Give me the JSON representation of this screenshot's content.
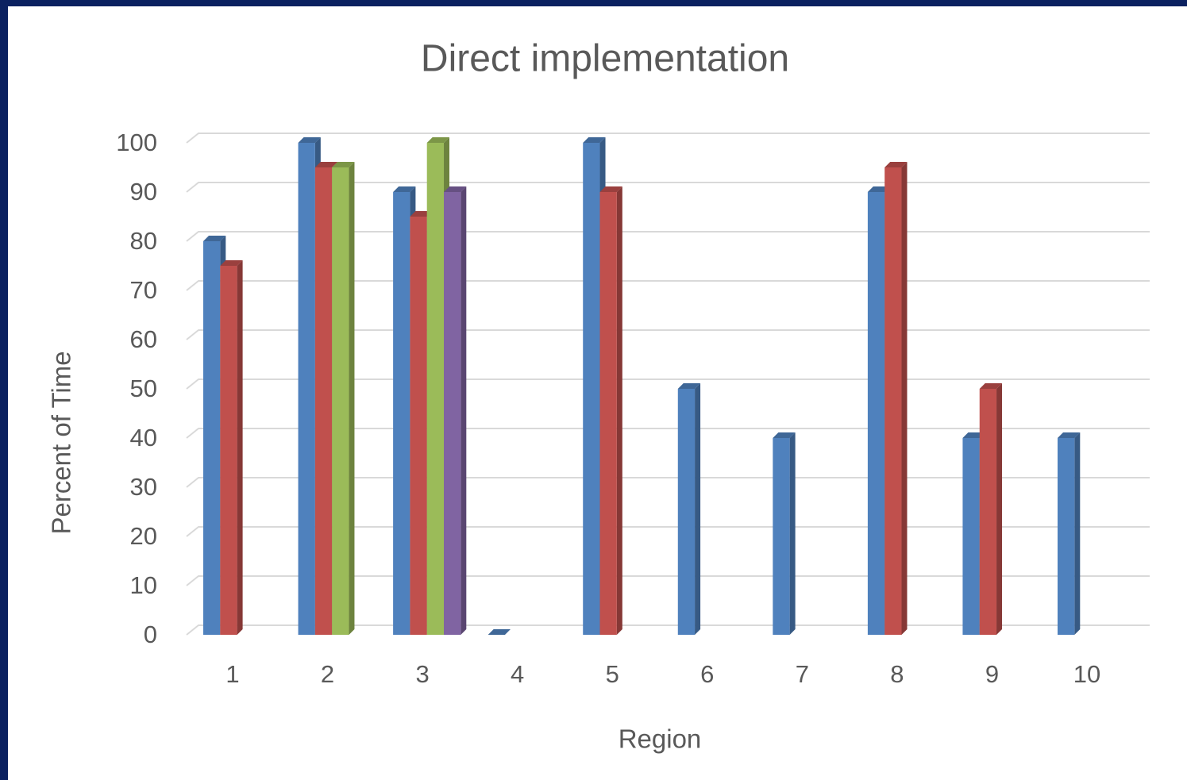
{
  "chart_data": {
    "type": "bar3d",
    "title": "Direct implementation",
    "x_label": "Region",
    "y_label": "Percent of Time",
    "categories": [
      "1",
      "2",
      "3",
      "4",
      "5",
      "6",
      "7",
      "8",
      "9",
      "10"
    ],
    "series": [
      {
        "color": "#4f81bd",
        "values": [
          80,
          100,
          90,
          0,
          100,
          50,
          40,
          90,
          40,
          40
        ]
      },
      {
        "color": "#c0504d",
        "values": [
          75,
          95,
          85,
          null,
          90,
          null,
          null,
          95,
          50,
          null
        ]
      },
      {
        "color": "#9bbb59",
        "values": [
          null,
          95,
          100,
          null,
          null,
          null,
          null,
          null,
          null,
          null
        ]
      },
      {
        "color": "#8064a2",
        "values": [
          null,
          null,
          90,
          null,
          null,
          null,
          null,
          null,
          null,
          null
        ]
      }
    ],
    "ylim": [
      0,
      100
    ],
    "yticks": [
      0,
      10,
      20,
      30,
      40,
      50,
      60,
      70,
      80,
      90,
      100
    ],
    "grid": true
  }
}
